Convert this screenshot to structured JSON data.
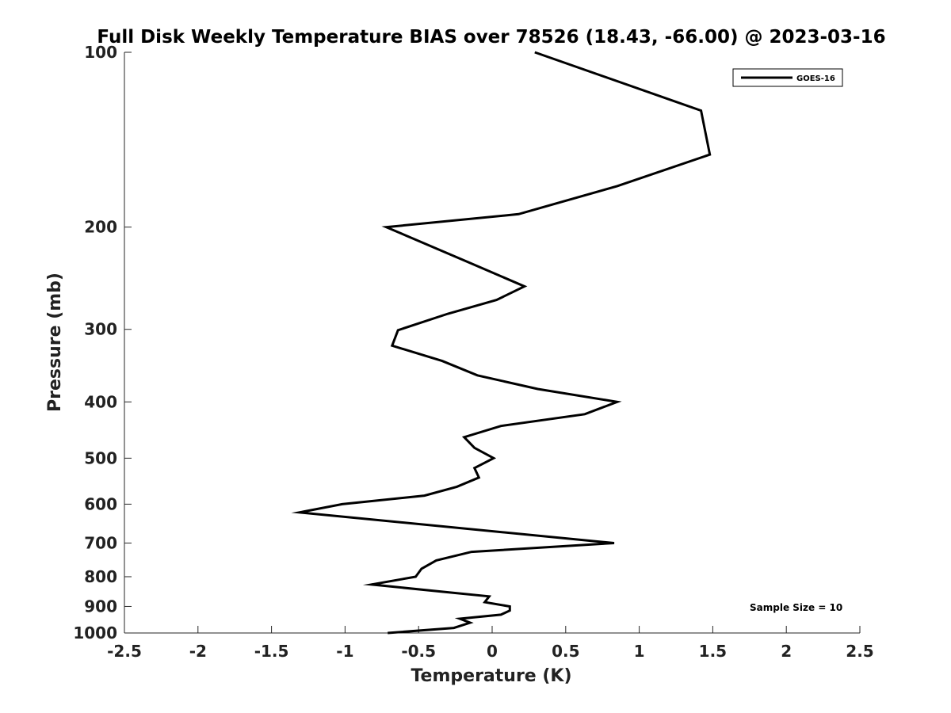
{
  "chart_data": {
    "type": "line",
    "title": "Full Disk Weekly Temperature BIAS over 78526 (18.43, -66.00) @ 2023-03-16",
    "xlabel": "Temperature (K)",
    "ylabel": "Pressure (mb)",
    "xlim": [
      -2.5,
      2.5
    ],
    "ylim": [
      100,
      1000
    ],
    "y_scale": "log",
    "y_reversed": true,
    "x_ticks": [
      "-2.5",
      "-2",
      "-1.5",
      "-1",
      "-0.5",
      "0",
      "0.5",
      "1",
      "1.5",
      "2",
      "2.5"
    ],
    "y_ticks": [
      "100",
      "200",
      "300",
      "400",
      "500",
      "600",
      "700",
      "800",
      "900",
      "1000"
    ],
    "grid": false,
    "legend_position": "top-right",
    "series": [
      {
        "name": "GOES-16",
        "color": "#000000",
        "points": [
          {
            "x": 0.29,
            "y": 100
          },
          {
            "x": 1.42,
            "y": 126
          },
          {
            "x": 1.48,
            "y": 150
          },
          {
            "x": 0.85,
            "y": 170
          },
          {
            "x": 0.18,
            "y": 190
          },
          {
            "x": -0.72,
            "y": 200
          },
          {
            "x": -0.16,
            "y": 230
          },
          {
            "x": 0.22,
            "y": 253
          },
          {
            "x": 0.03,
            "y": 267
          },
          {
            "x": -0.3,
            "y": 282
          },
          {
            "x": -0.64,
            "y": 301
          },
          {
            "x": -0.68,
            "y": 320
          },
          {
            "x": -0.34,
            "y": 340
          },
          {
            "x": -0.1,
            "y": 360
          },
          {
            "x": 0.31,
            "y": 380
          },
          {
            "x": 0.85,
            "y": 400
          },
          {
            "x": 0.63,
            "y": 420
          },
          {
            "x": 0.06,
            "y": 440
          },
          {
            "x": -0.19,
            "y": 460
          },
          {
            "x": -0.12,
            "y": 480
          },
          {
            "x": 0.01,
            "y": 500
          },
          {
            "x": -0.12,
            "y": 520
          },
          {
            "x": -0.09,
            "y": 540
          },
          {
            "x": -0.24,
            "y": 560
          },
          {
            "x": -0.46,
            "y": 580
          },
          {
            "x": -1.02,
            "y": 600
          },
          {
            "x": -1.31,
            "y": 620
          },
          {
            "x": 0.83,
            "y": 700
          },
          {
            "x": -0.14,
            "y": 725
          },
          {
            "x": -0.38,
            "y": 750
          },
          {
            "x": -0.48,
            "y": 775
          },
          {
            "x": -0.52,
            "y": 800
          },
          {
            "x": -0.82,
            "y": 825
          },
          {
            "x": -0.32,
            "y": 850
          },
          {
            "x": -0.02,
            "y": 865
          },
          {
            "x": -0.05,
            "y": 885
          },
          {
            "x": 0.12,
            "y": 900
          },
          {
            "x": 0.12,
            "y": 915
          },
          {
            "x": 0.06,
            "y": 930
          },
          {
            "x": -0.22,
            "y": 945
          },
          {
            "x": -0.15,
            "y": 960
          },
          {
            "x": -0.26,
            "y": 980
          },
          {
            "x": -0.71,
            "y": 1000
          }
        ]
      }
    ],
    "annotations": [
      "Sample Size = 10"
    ]
  }
}
